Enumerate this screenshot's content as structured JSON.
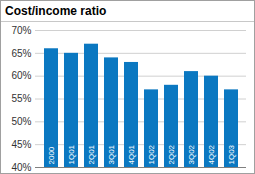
{
  "chart_data": {
    "type": "bar",
    "title": "Cost/income ratio",
    "categories": [
      "2000",
      "1Q01",
      "2Q01",
      "3Q01",
      "4Q01",
      "1Q02",
      "2Q02",
      "3Q02",
      "4Q02",
      "1Q03"
    ],
    "values": [
      66,
      65,
      67,
      64,
      63,
      57,
      58,
      61,
      60,
      57
    ],
    "color": "#0b78c1",
    "ylim": [
      40,
      70
    ],
    "yticks": [
      {
        "value": 40,
        "label": "40%"
      },
      {
        "value": 45,
        "label": "45%"
      },
      {
        "value": 50,
        "label": "50%"
      },
      {
        "value": 55,
        "label": "55%"
      },
      {
        "value": 60,
        "label": "60%"
      },
      {
        "value": 65,
        "label": "65%"
      },
      {
        "value": 70,
        "label": "70%"
      }
    ],
    "grid": true,
    "tick_labels": "y"
  }
}
